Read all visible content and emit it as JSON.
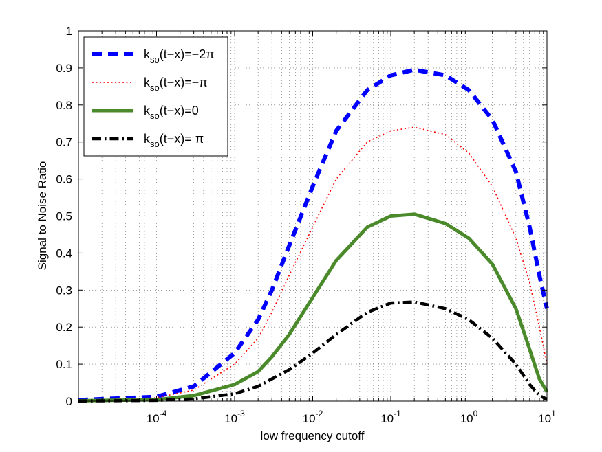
{
  "chart_data": {
    "type": "line",
    "title": "",
    "xlabel": "low frequency cutoff",
    "ylabel": "Signal to Noise Ratio",
    "xscale": "log",
    "xlim": [
      1e-05,
      10
    ],
    "ylim": [
      0,
      1
    ],
    "grid": true,
    "legend_position": "top-left",
    "x_ticks": [
      {
        "base": "10",
        "exp": "-4",
        "value": 0.0001
      },
      {
        "base": "10",
        "exp": "-3",
        "value": 0.001
      },
      {
        "base": "10",
        "exp": "-2",
        "value": 0.01
      },
      {
        "base": "10",
        "exp": "-1",
        "value": 0.1
      },
      {
        "base": "10",
        "exp": "0",
        "value": 1
      },
      {
        "base": "10",
        "exp": "1",
        "value": 10
      }
    ],
    "y_ticks": [
      "0",
      "0.1",
      "0.2",
      "0.3",
      "0.4",
      "0.5",
      "0.6",
      "0.7",
      "0.8",
      "0.9",
      "1"
    ],
    "series": [
      {
        "name": "k_so(t-x)=-2π",
        "label_main": "k",
        "label_sub": "so",
        "label_rest": "(t−x)=−2π",
        "color": "#0000ff",
        "style": "dashed",
        "points": [
          [
            1e-05,
            0.003
          ],
          [
            0.0001,
            0.012
          ],
          [
            0.0003,
            0.04
          ],
          [
            0.001,
            0.13
          ],
          [
            0.002,
            0.22
          ],
          [
            0.003,
            0.3
          ],
          [
            0.005,
            0.42
          ],
          [
            0.01,
            0.58
          ],
          [
            0.02,
            0.73
          ],
          [
            0.05,
            0.84
          ],
          [
            0.1,
            0.88
          ],
          [
            0.2,
            0.895
          ],
          [
            0.5,
            0.88
          ],
          [
            1,
            0.84
          ],
          [
            2,
            0.76
          ],
          [
            4,
            0.62
          ],
          [
            6,
            0.47
          ],
          [
            8,
            0.34
          ],
          [
            10,
            0.25
          ]
        ]
      },
      {
        "name": "k_so(t-x)=-π",
        "label_main": "k",
        "label_sub": "so",
        "label_rest": "(t−x)=−π",
        "color": "#ff0000",
        "style": "dotted",
        "points": [
          [
            1e-05,
            0.002
          ],
          [
            0.0001,
            0.009
          ],
          [
            0.0003,
            0.03
          ],
          [
            0.001,
            0.1
          ],
          [
            0.002,
            0.17
          ],
          [
            0.003,
            0.24
          ],
          [
            0.005,
            0.34
          ],
          [
            0.01,
            0.47
          ],
          [
            0.02,
            0.6
          ],
          [
            0.05,
            0.7
          ],
          [
            0.1,
            0.73
          ],
          [
            0.2,
            0.74
          ],
          [
            0.5,
            0.72
          ],
          [
            1,
            0.67
          ],
          [
            2,
            0.58
          ],
          [
            4,
            0.44
          ],
          [
            6,
            0.32
          ],
          [
            8,
            0.2
          ],
          [
            10,
            0.1
          ]
        ]
      },
      {
        "name": "k_so(t-x)=0",
        "label_main": "k",
        "label_sub": "so",
        "label_rest": "(t−x)=0",
        "color": "#4a8a2a",
        "style": "solid",
        "points": [
          [
            1e-05,
            0.001
          ],
          [
            0.0001,
            0.004
          ],
          [
            0.0003,
            0.015
          ],
          [
            0.001,
            0.045
          ],
          [
            0.002,
            0.08
          ],
          [
            0.003,
            0.12
          ],
          [
            0.005,
            0.18
          ],
          [
            0.01,
            0.28
          ],
          [
            0.02,
            0.38
          ],
          [
            0.05,
            0.47
          ],
          [
            0.1,
            0.5
          ],
          [
            0.2,
            0.505
          ],
          [
            0.5,
            0.48
          ],
          [
            1,
            0.44
          ],
          [
            2,
            0.37
          ],
          [
            4,
            0.25
          ],
          [
            6,
            0.14
          ],
          [
            8,
            0.06
          ],
          [
            10,
            0.025
          ]
        ]
      },
      {
        "name": "k_so(t-x)=π",
        "label_main": "k",
        "label_sub": "so",
        "label_rest": "(t−x)= π",
        "color": "#000000",
        "style": "dashdot",
        "points": [
          [
            1e-05,
            0.0005
          ],
          [
            0.0001,
            0.002
          ],
          [
            0.0003,
            0.006
          ],
          [
            0.001,
            0.02
          ],
          [
            0.002,
            0.04
          ],
          [
            0.003,
            0.06
          ],
          [
            0.005,
            0.085
          ],
          [
            0.01,
            0.13
          ],
          [
            0.02,
            0.18
          ],
          [
            0.05,
            0.24
          ],
          [
            0.1,
            0.265
          ],
          [
            0.2,
            0.268
          ],
          [
            0.5,
            0.25
          ],
          [
            1,
            0.22
          ],
          [
            2,
            0.17
          ],
          [
            4,
            0.1
          ],
          [
            6,
            0.045
          ],
          [
            8,
            0.015
          ],
          [
            10,
            0.005
          ]
        ]
      }
    ]
  }
}
